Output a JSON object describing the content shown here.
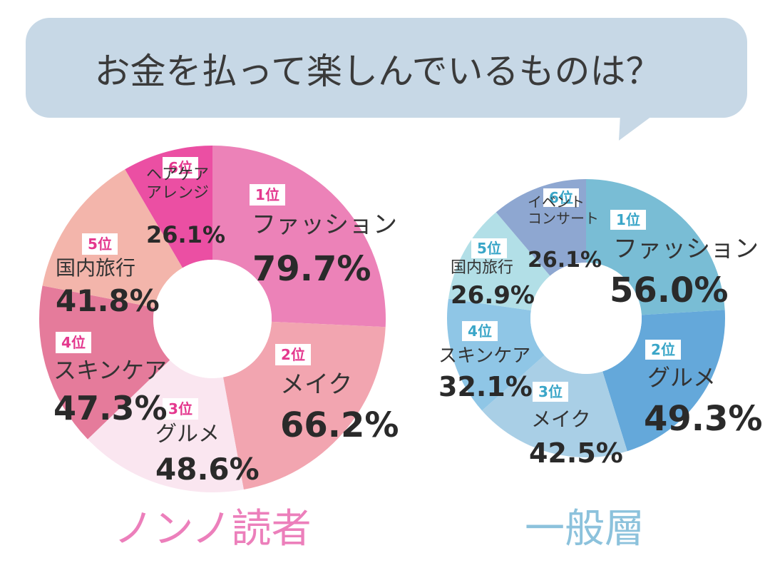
{
  "header": {
    "title": "お金を払って楽しんでいるものは？"
  },
  "colors": {
    "bubble": "#c7d8e6",
    "nonno_rank": "#e4388e",
    "general_rank": "#3aa6c8",
    "nonno_group": "#ec7fbb",
    "general_group": "#8cc2dc"
  },
  "chart_data": [
    {
      "type": "pie",
      "variant": "donut",
      "group_label": "ノンノ読者",
      "slices": [
        {
          "rank_label": "1位",
          "label": "ファッション",
          "value": 79.7,
          "value_label": "79.7%",
          "color": "#ec82b8"
        },
        {
          "rank_label": "2位",
          "label": "メイク",
          "value": 66.2,
          "value_label": "66.2%",
          "color": "#f2a5b0"
        },
        {
          "rank_label": "3位",
          "label": "グルメ",
          "value": 48.6,
          "value_label": "48.6%",
          "color": "#fae6f0"
        },
        {
          "rank_label": "4位",
          "label": "スキンケア",
          "value": 47.3,
          "value_label": "47.3%",
          "color": "#e57b9b"
        },
        {
          "rank_label": "5位",
          "label": "国内旅行",
          "value": 41.8,
          "value_label": "41.8%",
          "color": "#f3b5ab"
        },
        {
          "rank_label": "6位",
          "label": "ヘアケア\nアレンジ",
          "value": 26.1,
          "value_label": "26.1%",
          "color": "#eb4fa3"
        }
      ]
    },
    {
      "type": "pie",
      "variant": "donut",
      "group_label": "一般層",
      "slices": [
        {
          "rank_label": "1位",
          "label": "ファッション",
          "value": 56.0,
          "value_label": "56.0%",
          "color": "#79bdd5"
        },
        {
          "rank_label": "2位",
          "label": "グルメ",
          "value": 49.3,
          "value_label": "49.3%",
          "color": "#64a8da"
        },
        {
          "rank_label": "3位",
          "label": "メイク",
          "value": 42.5,
          "value_label": "42.5%",
          "color": "#a9cfe6"
        },
        {
          "rank_label": "4位",
          "label": "スキンケア",
          "value": 32.1,
          "value_label": "32.1%",
          "color": "#8fc6e6"
        },
        {
          "rank_label": "5位",
          "label": "国内旅行",
          "value": 26.9,
          "value_label": "26.9%",
          "color": "#b2dfe7"
        },
        {
          "rank_label": "6位",
          "label": "イベント\nコンサート",
          "value": 26.1,
          "value_label": "26.1%",
          "color": "#8ea7d1"
        }
      ]
    }
  ]
}
